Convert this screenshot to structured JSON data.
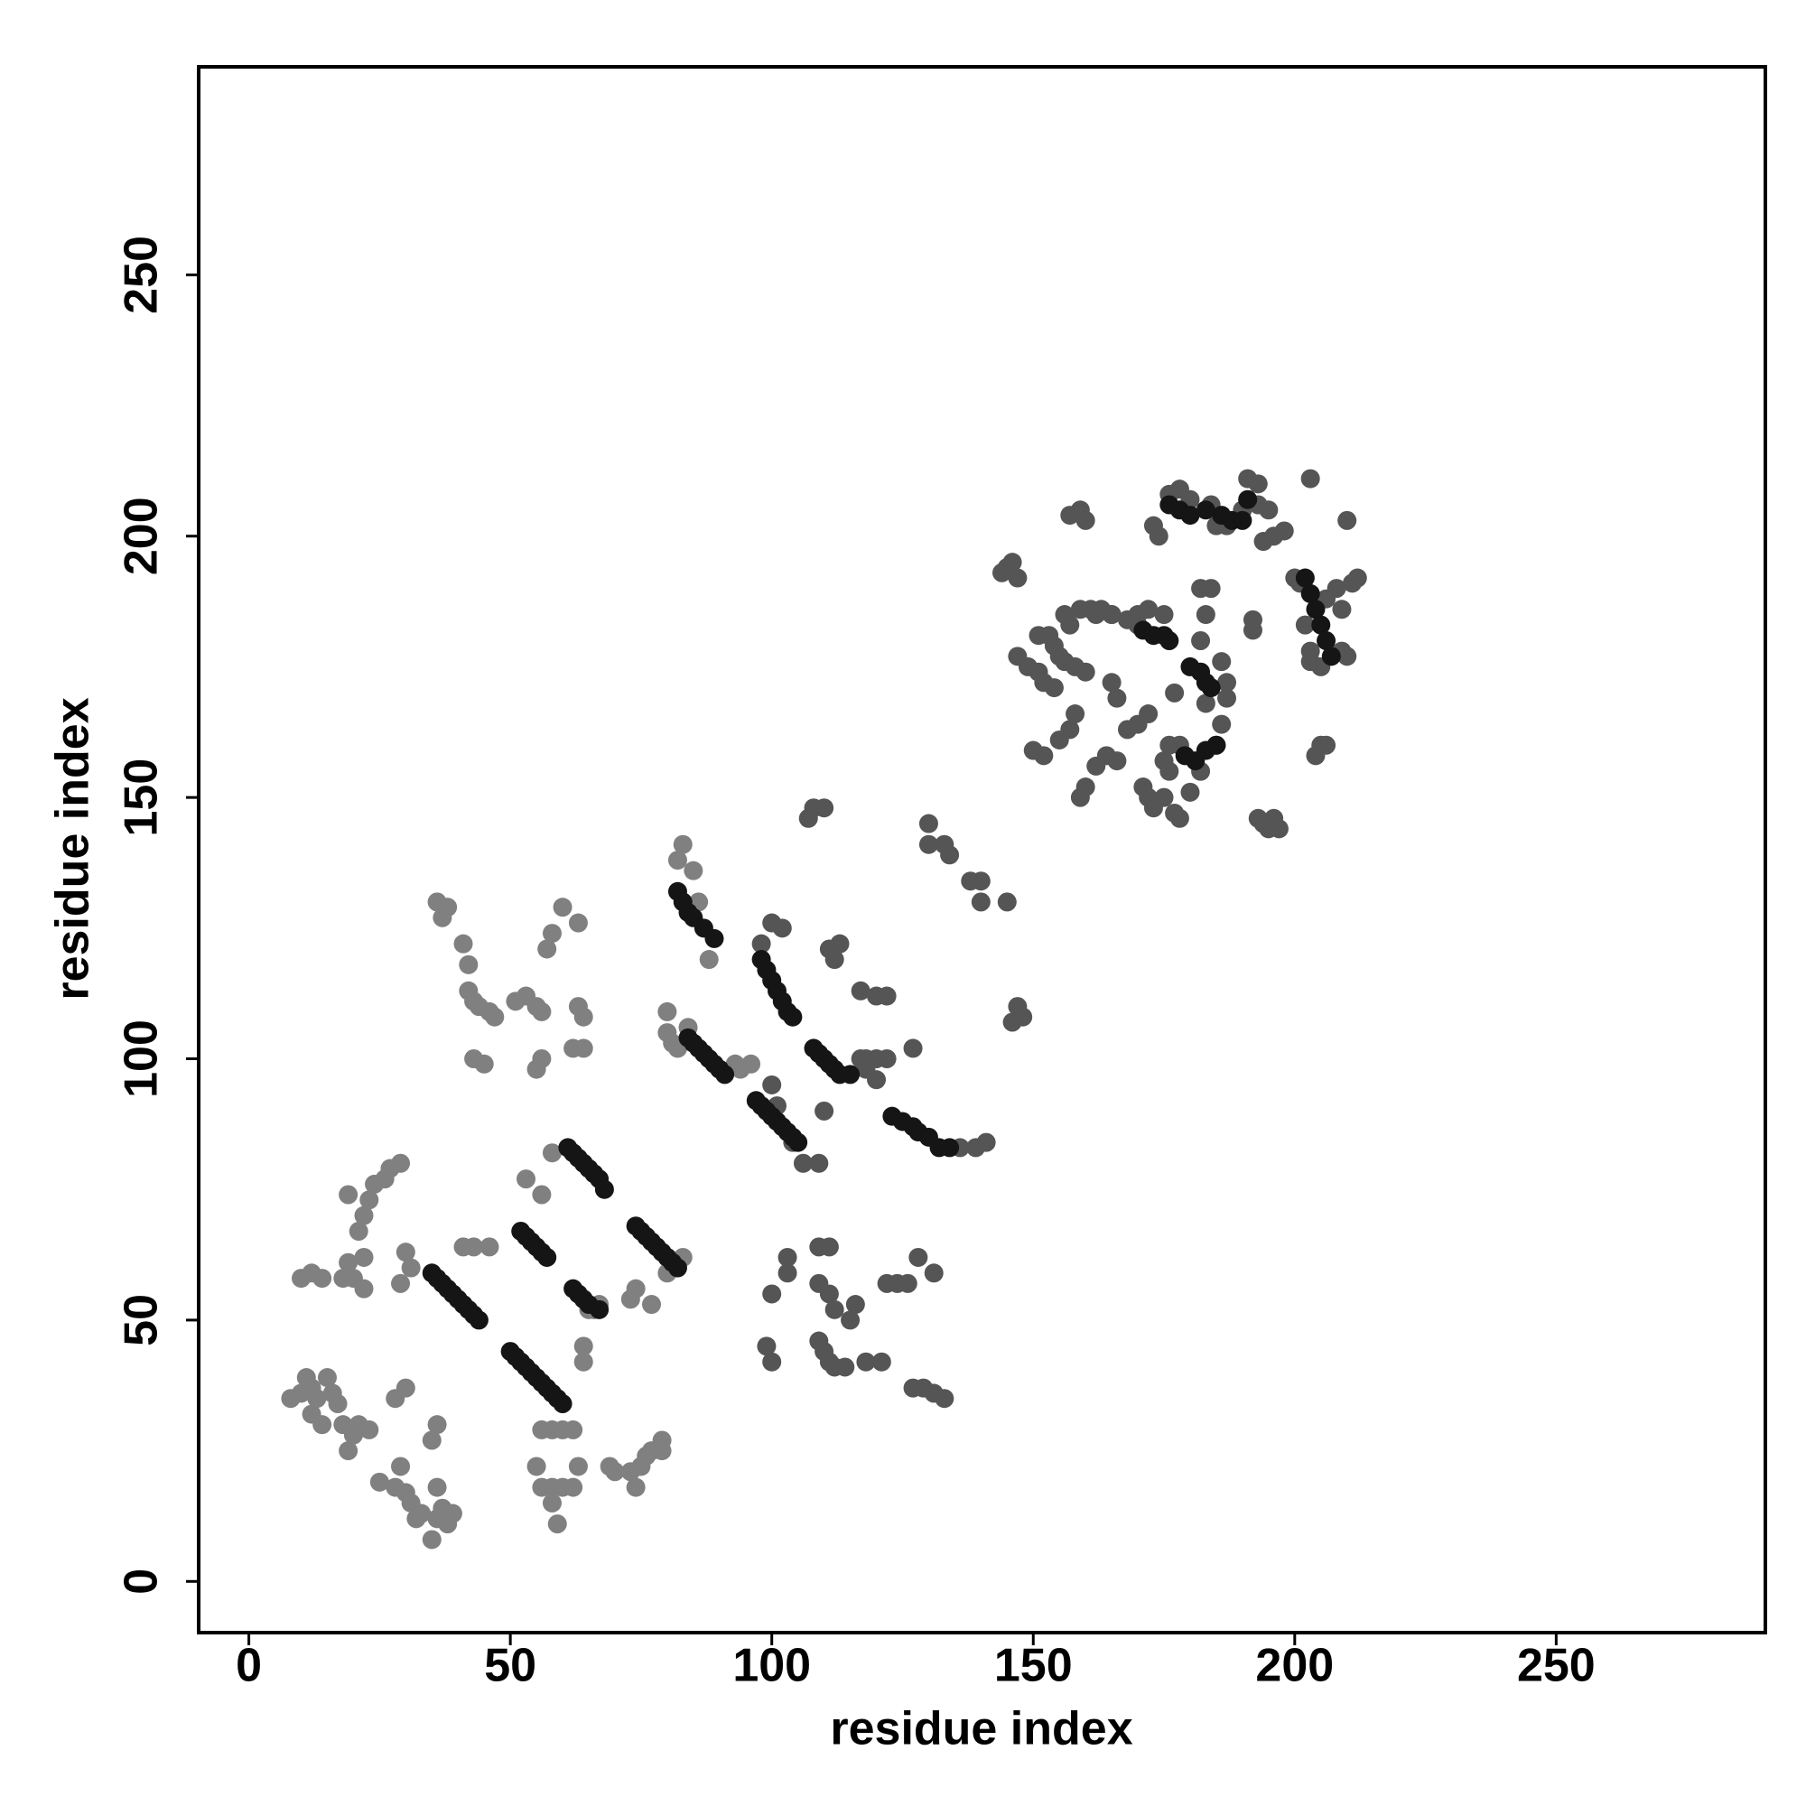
{
  "chart_data": {
    "type": "scatter",
    "x_label": "residue index",
    "y_label": "residue index",
    "xlim": [
      -9.6,
      290
    ],
    "ylim": [
      -9.8,
      289.8
    ],
    "xticks": [
      0,
      50,
      100,
      150,
      200,
      250
    ],
    "yticks": [
      0,
      50,
      100,
      150,
      200,
      250
    ],
    "series": [
      {
        "color": "#808080",
        "x": [
          8,
          10,
          11,
          12,
          13,
          15,
          16,
          17,
          18,
          20,
          21,
          23,
          19,
          12,
          14,
          10,
          12,
          14,
          18,
          19,
          20,
          22,
          22,
          21,
          22,
          23,
          24,
          26,
          27,
          29,
          19,
          25,
          28,
          29,
          30,
          31,
          32,
          33,
          35,
          36,
          37,
          38,
          39,
          36,
          35,
          36,
          30,
          31,
          29,
          28,
          30,
          38,
          36,
          37,
          41,
          42,
          42,
          43,
          44,
          46,
          47,
          45,
          43,
          51,
          53,
          55,
          56,
          56,
          55,
          57,
          58,
          60,
          63,
          63,
          64,
          62,
          64,
          58,
          56,
          53,
          46,
          43,
          41,
          55,
          56,
          58,
          59,
          58,
          60,
          62,
          63,
          56,
          58,
          60,
          62,
          64,
          64,
          65,
          66,
          67,
          69,
          70,
          73,
          74,
          75,
          76,
          77,
          79,
          79,
          73,
          74,
          77,
          80,
          83,
          80,
          80,
          81,
          82,
          84,
          82,
          83,
          85,
          86,
          88,
          93,
          94,
          96
        ],
        "values": [
          35,
          36,
          39,
          37,
          35,
          39,
          36,
          34,
          30,
          28,
          30,
          29,
          25,
          32,
          30,
          58,
          59,
          58,
          58,
          61,
          58,
          62,
          56,
          67,
          70,
          73,
          76,
          77,
          79,
          80,
          74,
          19,
          18,
          22,
          17,
          15,
          12,
          13,
          8,
          12,
          14,
          11,
          13,
          18,
          27,
          30,
          63,
          60,
          57,
          35,
          37,
          129,
          130,
          127,
          122,
          118,
          113,
          111,
          110,
          109,
          108,
          99,
          100,
          111,
          112,
          110,
          109,
          100,
          98,
          121,
          124,
          129,
          126,
          110,
          108,
          102,
          102,
          82,
          74,
          77,
          64,
          64,
          64,
          22,
          18,
          15,
          11,
          18,
          18,
          18,
          22,
          29,
          29,
          29,
          29,
          45,
          42,
          52,
          52,
          53,
          22,
          21,
          21,
          18,
          22,
          24,
          25,
          27,
          25,
          54,
          56,
          53,
          59,
          62,
          109,
          105,
          103,
          102,
          106,
          138,
          141,
          136,
          130,
          119,
          99,
          98,
          99
        ]
      },
      {
        "color": "#555555",
        "x": [
          98,
          100,
          102,
          100,
          101,
          104,
          106,
          109,
          110,
          99,
          100,
          100,
          103,
          103,
          109,
          110,
          111,
          112,
          114,
          118,
          121,
          111,
          112,
          109,
          111,
          109,
          115,
          116,
          122,
          124,
          126,
          128,
          131,
          127,
          129,
          131,
          133,
          113,
          111,
          112,
          117,
          120,
          122,
          117,
          118,
          120,
          122,
          127,
          120,
          118,
          136,
          139,
          141,
          133,
          134,
          130,
          130,
          108,
          107,
          110,
          138,
          140,
          140,
          145,
          147,
          148,
          146,
          144,
          145,
          146,
          147,
          157,
          159,
          160,
          151,
          153,
          154,
          155,
          156,
          157,
          159,
          161,
          163,
          165,
          168,
          170,
          147,
          149,
          151,
          152,
          154,
          156,
          158,
          160,
          165,
          166,
          150,
          152,
          155,
          157,
          158,
          159,
          160,
          162,
          164,
          166,
          168,
          170,
          172,
          171,
          172,
          173,
          175,
          176,
          177,
          178,
          180,
          182,
          185,
          186,
          183,
          187,
          186,
          187,
          177,
          176,
          175,
          178,
          184,
          182,
          182,
          183,
          192,
          192,
          194,
          195,
          193,
          196,
          197,
          198,
          196,
          194,
          195,
          190,
          191,
          193,
          193,
          203,
          210,
          200,
          201,
          202,
          203,
          203,
          205,
          206,
          208,
          209,
          210,
          211,
          212,
          209,
          204,
          205,
          206,
          173,
          174,
          176,
          178,
          180,
          184,
          185,
          187,
          162,
          165,
          170,
          172,
          175
        ],
        "values": [
          122,
          126,
          125,
          95,
          91,
          84,
          80,
          80,
          90,
          45,
          42,
          55,
          62,
          59,
          46,
          44,
          42,
          41,
          41,
          42,
          42,
          55,
          52,
          64,
          64,
          57,
          50,
          53,
          57,
          57,
          57,
          62,
          59,
          37,
          37,
          36,
          35,
          122,
          121,
          119,
          113,
          112,
          112,
          100,
          100,
          100,
          100,
          102,
          96,
          98,
          83,
          83,
          84,
          141,
          139,
          145,
          141,
          148,
          146,
          148,
          134,
          134,
          130,
          130,
          110,
          108,
          107,
          193,
          194,
          195,
          192,
          204,
          205,
          203,
          181,
          181,
          179,
          177,
          185,
          183,
          186,
          186,
          186,
          185,
          184,
          183,
          177,
          175,
          174,
          172,
          171,
          176,
          175,
          174,
          172,
          169,
          159,
          158,
          161,
          163,
          166,
          150,
          152,
          156,
          158,
          157,
          163,
          164,
          166,
          152,
          150,
          148,
          150,
          155,
          147,
          146,
          151,
          155,
          160,
          164,
          168,
          172,
          176,
          169,
          170,
          160,
          157,
          160,
          190,
          190,
          180,
          185,
          182,
          184,
          145,
          144,
          146,
          146,
          144,
          201,
          200,
          199,
          205,
          205,
          211,
          210,
          206,
          211,
          203,
          192,
          191,
          183,
          178,
          176,
          175,
          188,
          190,
          186,
          177,
          191,
          192,
          178,
          158,
          160,
          160,
          202,
          200,
          208,
          209,
          207,
          206,
          202,
          202,
          185,
          185,
          185,
          186,
          185
        ]
      },
      {
        "color": "#151515",
        "x": [
          35,
          36,
          37,
          38,
          39,
          40,
          41,
          42,
          43,
          44,
          50,
          51,
          52,
          53,
          54,
          55,
          56,
          57,
          58,
          59,
          60,
          61,
          62,
          63,
          64,
          65,
          66,
          67,
          68,
          74,
          75,
          76,
          77,
          78,
          79,
          80,
          81,
          82,
          52,
          53,
          54,
          55,
          56,
          57,
          62,
          63,
          64,
          65,
          67,
          84,
          85,
          86,
          87,
          88,
          89,
          90,
          91,
          97,
          98,
          99,
          100,
          101,
          102,
          103,
          104,
          105,
          98,
          99,
          100,
          101,
          102,
          103,
          104,
          108,
          109,
          110,
          111,
          112,
          113,
          115,
          123,
          125,
          127,
          128,
          130,
          132,
          134,
          82,
          83,
          84,
          85,
          87,
          89,
          176,
          178,
          180,
          183,
          186,
          188,
          190,
          191,
          180,
          182,
          183,
          184,
          202,
          203,
          204,
          205,
          206,
          207,
          171,
          173,
          175,
          176,
          179,
          181,
          183,
          185
        ],
        "values": [
          59,
          58,
          57,
          56,
          55,
          54,
          53,
          52,
          51,
          50,
          44,
          43,
          42,
          41,
          40,
          39,
          38,
          37,
          36,
          35,
          34,
          83,
          82,
          81,
          80,
          79,
          78,
          77,
          75,
          68,
          67,
          66,
          65,
          64,
          63,
          62,
          61,
          60,
          67,
          66,
          65,
          64,
          63,
          62,
          56,
          55,
          54,
          53,
          52,
          104,
          103,
          102,
          101,
          100,
          99,
          98,
          97,
          92,
          91,
          90,
          89,
          88,
          87,
          86,
          85,
          84,
          119,
          117,
          115,
          113,
          111,
          109,
          108,
          102,
          101,
          100,
          99,
          98,
          97,
          97,
          89,
          88,
          87,
          86,
          85,
          83,
          83,
          132,
          130,
          128,
          127,
          125,
          123,
          206,
          205,
          204,
          205,
          204,
          203,
          203,
          207,
          175,
          174,
          172,
          171,
          192,
          189,
          186,
          183,
          180,
          177,
          182,
          181,
          181,
          180,
          158,
          157,
          159,
          160
        ]
      }
    ]
  }
}
